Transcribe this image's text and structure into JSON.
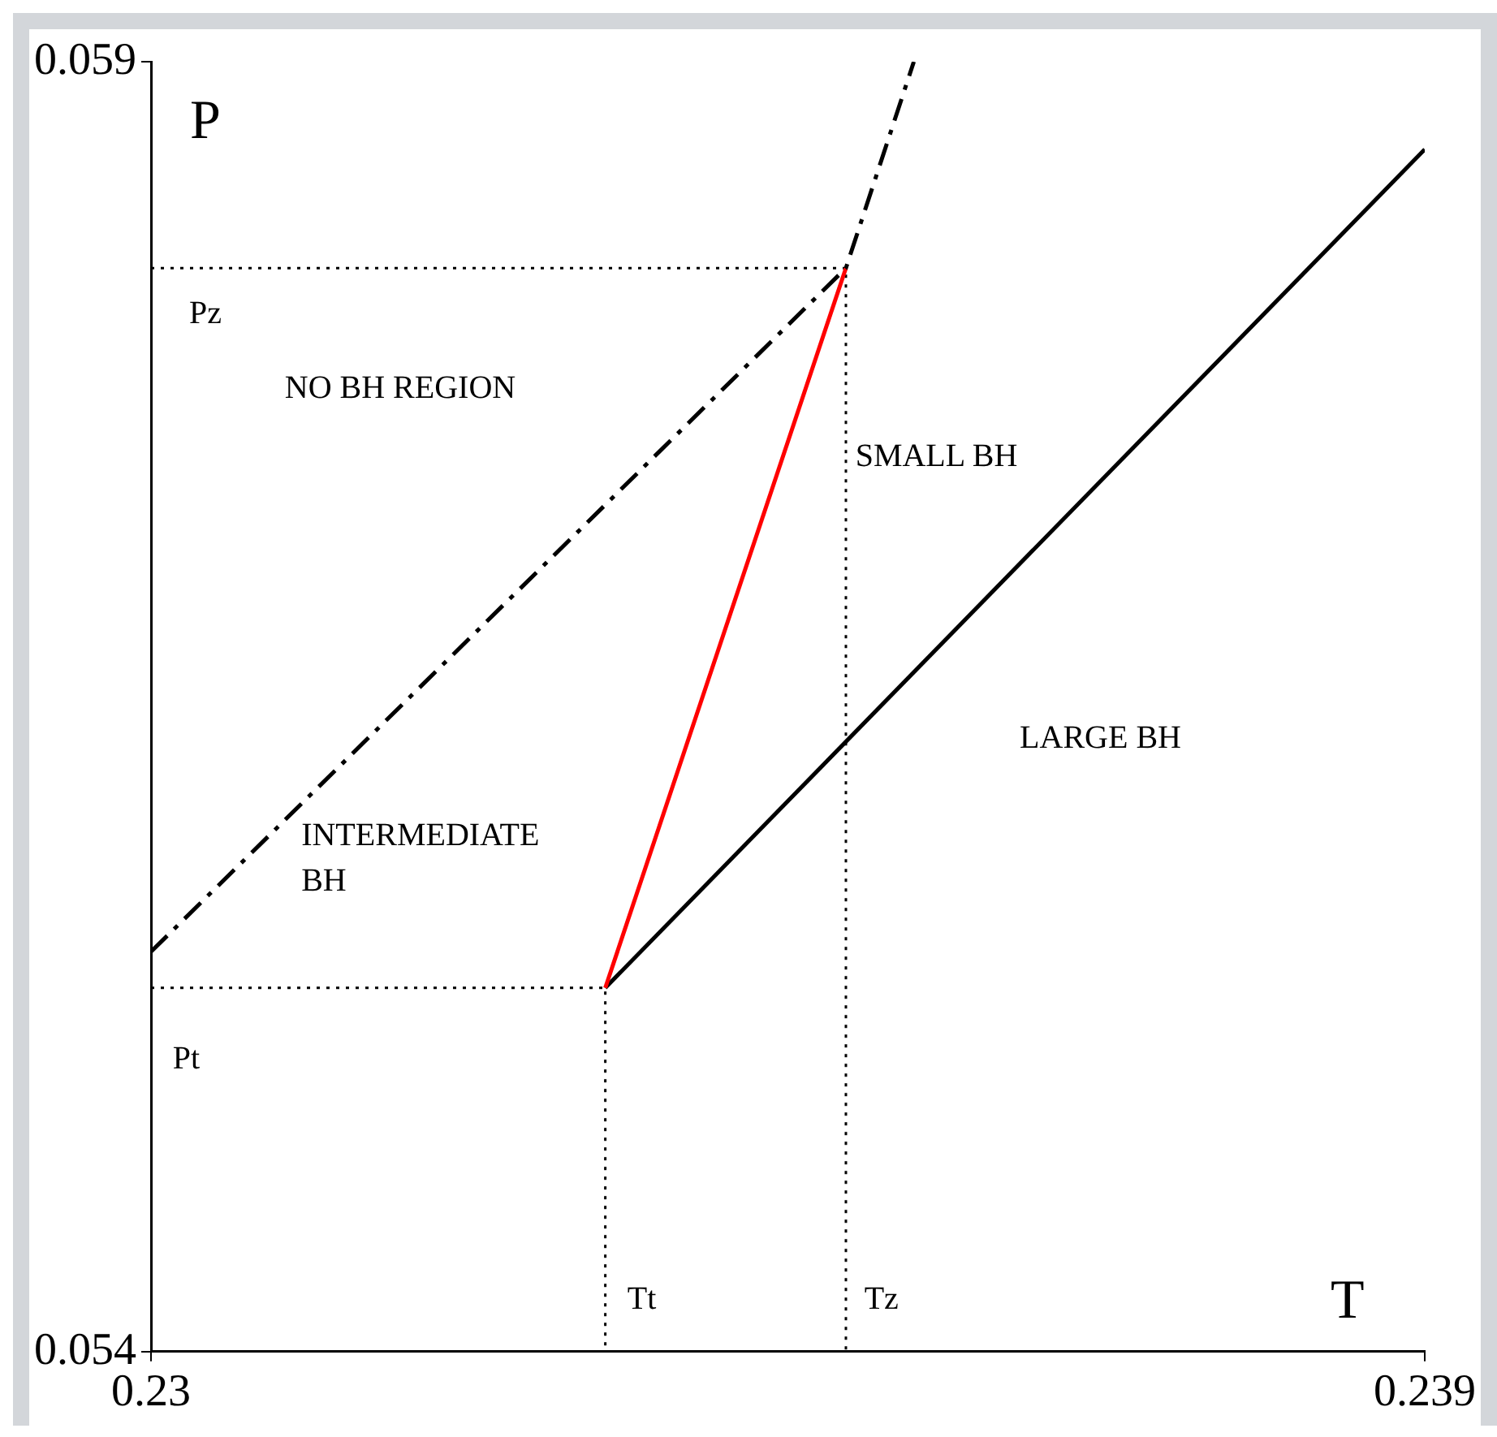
{
  "chart_data": {
    "type": "line",
    "xlabel": "T",
    "ylabel": "P",
    "xlim": [
      0.23,
      0.239
    ],
    "xticks": [
      0.23,
      0.239
    ],
    "ylim": [
      0.054,
      0.059
    ],
    "yticks": [
      0.054,
      0.059
    ],
    "grid": false,
    "legend": false,
    "marker": "none",
    "series": [
      {
        "x": [
          0.23,
          0.23491,
          0.23539
        ],
        "values": [
          0.05555,
          0.0582,
          0.059
        ],
        "color": "#000000",
        "line_style": "dashed"
      },
      {
        "x": [
          0.23321,
          0.23491
        ],
        "values": [
          0.05541,
          0.0582
        ],
        "color": "#ff0000",
        "line_style": "solid"
      },
      {
        "x": [
          0.23321,
          0.239
        ],
        "values": [
          0.05541,
          0.05866
        ],
        "color": "#000000",
        "line_style": "solid"
      },
      {
        "x": [
          0.23,
          0.23491,
          0.23491
        ],
        "values": [
          0.0582,
          0.0582,
          0.054
        ],
        "color": "#000000",
        "line_style": "dotted"
      },
      {
        "x": [
          0.23,
          0.23321,
          0.23321
        ],
        "values": [
          0.05541,
          0.05541,
          0.054
        ],
        "color": "#000000",
        "line_style": "dotted"
      }
    ],
    "annotations": [
      "NO BH REGION",
      "SMALL BH",
      "LARGE BH",
      "INTERMEDIATE\nBH",
      "Pz",
      "Pt",
      "Tt",
      "Tz"
    ]
  }
}
